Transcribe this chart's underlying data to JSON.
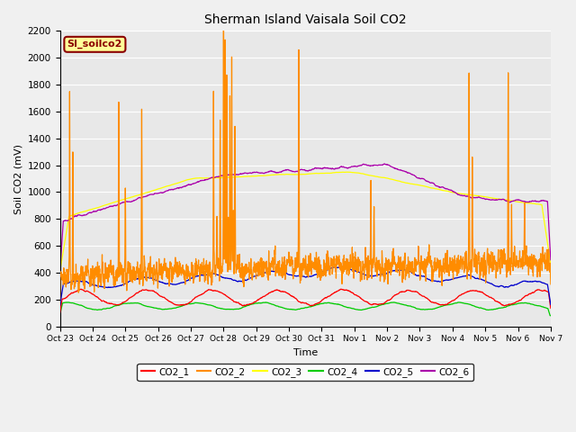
{
  "title": "Sherman Island Vaisala Soil CO2",
  "ylabel": "Soil CO2 (mV)",
  "xlabel": "Time",
  "ylim": [
    0,
    2200
  ],
  "yticks": [
    0,
    200,
    400,
    600,
    800,
    1000,
    1200,
    1400,
    1600,
    1800,
    2000,
    2200
  ],
  "legend_label": "SI_soilco2",
  "series_colors": {
    "CO2_1": "#ff0000",
    "CO2_2": "#ff8c00",
    "CO2_3": "#ffff00",
    "CO2_4": "#00cc00",
    "CO2_5": "#0000cc",
    "CO2_6": "#aa00aa"
  },
  "xtick_labels": [
    "Oct 23",
    "Oct 24",
    "Oct 25",
    "Oct 26",
    "Oct 27",
    "Oct 28",
    "Oct 29",
    "Oct 30",
    "Oct 31",
    "Nov 1",
    "Nov 2",
    "Nov 3",
    "Nov 4",
    "Nov 5",
    "Nov 6",
    "Nov 7"
  ],
  "background_color": "#e8e8e8",
  "grid_color": "#ffffff",
  "n_days": 15,
  "fig_bg": "#f0f0f0"
}
